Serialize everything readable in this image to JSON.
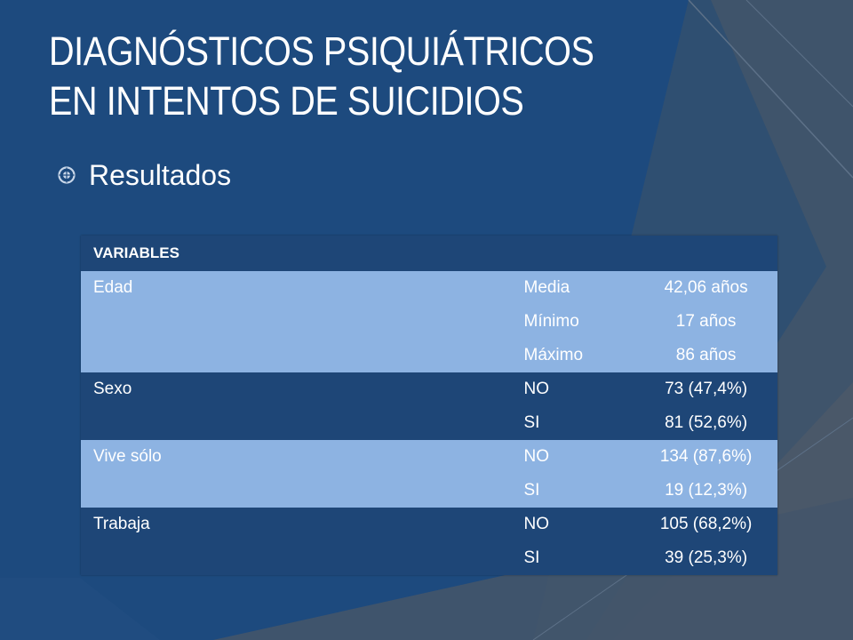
{
  "slide": {
    "title_line1": "DIAGNÓSTICOS PSIQUIÁTRICOS",
    "title_line2": "EN INTENTOS DE SUICIDIOS",
    "bullet_icon": "circled-dot-bullet-icon",
    "bullet_text": "Resultados"
  },
  "colors": {
    "background": "#1d4a7e",
    "table_dark": "#1e4677",
    "table_light": "#8db3e2"
  },
  "table": {
    "header": "VARIABLES",
    "rows": [
      {
        "variable": "Edad",
        "category": "Media",
        "value": "42,06 años"
      },
      {
        "variable": "",
        "category": "Mínimo",
        "value": "17 años"
      },
      {
        "variable": "",
        "category": "Máximo",
        "value": "86 años"
      },
      {
        "variable": "Sexo",
        "category": "NO",
        "value": "73 (47,4%)"
      },
      {
        "variable": "",
        "category": "SI",
        "value": "81 (52,6%)"
      },
      {
        "variable": "Vive sólo",
        "category": "NO",
        "value": "134 (87,6%)"
      },
      {
        "variable": "",
        "category": "SI",
        "value": "19 (12,3%)"
      },
      {
        "variable": "Trabaja",
        "category": "NO",
        "value": "105 (68,2%)"
      },
      {
        "variable": "",
        "category": "SI",
        "value": "39 (25,3%)"
      }
    ]
  }
}
